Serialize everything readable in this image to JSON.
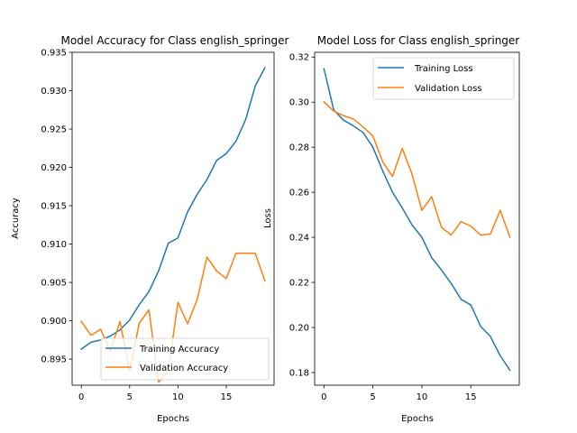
{
  "chart_data": [
    {
      "type": "line",
      "title": "Model Accuracy for Class english_springer",
      "xlabel": "Epochs",
      "ylabel": "Accuracy",
      "xlim": [
        -0.95,
        19.95
      ],
      "ylim": [
        0.8916,
        0.935
      ],
      "xticks": [
        0,
        5,
        10,
        15
      ],
      "yticks": [
        0.895,
        0.9,
        0.905,
        0.91,
        0.915,
        0.92,
        0.925,
        0.93,
        0.935
      ],
      "ytick_labels": [
        "0.895",
        "0.900",
        "0.905",
        "0.910",
        "0.915",
        "0.920",
        "0.925",
        "0.930",
        "0.935"
      ],
      "legend_position": "lower right",
      "x": [
        0,
        1,
        2,
        3,
        4,
        5,
        6,
        7,
        8,
        9,
        10,
        11,
        12,
        13,
        14,
        15,
        16,
        17,
        18,
        19
      ],
      "series": [
        {
          "name": "Training Accuracy",
          "color": "#1f77b4",
          "values": [
            0.8963,
            0.8972,
            0.8975,
            0.898,
            0.8988,
            0.9001,
            0.9021,
            0.9038,
            0.9065,
            0.9101,
            0.9108,
            0.9142,
            0.9165,
            0.9184,
            0.9209,
            0.9218,
            0.9234,
            0.9262,
            0.9306,
            0.933
          ]
        },
        {
          "name": "Validation Accuracy",
          "color": "#ff7f0e",
          "values": [
            0.8999,
            0.8981,
            0.8989,
            0.896,
            0.8999,
            0.8935,
            0.8997,
            0.9014,
            0.892,
            0.8935,
            0.9024,
            0.8996,
            0.9028,
            0.9083,
            0.9065,
            0.9055,
            0.9088,
            0.9088,
            0.9088,
            0.9052
          ]
        }
      ]
    },
    {
      "type": "line",
      "title": "Model Loss for Class english_springer",
      "xlabel": "Epochs",
      "ylabel": "Loss",
      "xlim": [
        -0.95,
        19.95
      ],
      "ylim": [
        0.1744,
        0.3221
      ],
      "xticks": [
        0,
        5,
        10,
        15
      ],
      "yticks": [
        0.18,
        0.2,
        0.22,
        0.24,
        0.26,
        0.28,
        0.3,
        0.32
      ],
      "ytick_labels": [
        "0.18",
        "0.20",
        "0.22",
        "0.24",
        "0.26",
        "0.28",
        "0.30",
        "0.32"
      ],
      "legend_position": "upper right",
      "x": [
        0,
        1,
        2,
        3,
        4,
        5,
        6,
        7,
        8,
        9,
        10,
        11,
        12,
        13,
        14,
        15,
        16,
        17,
        18,
        19
      ],
      "series": [
        {
          "name": "Training Loss",
          "color": "#1f77b4",
          "values": [
            0.3148,
            0.2965,
            0.292,
            0.2895,
            0.2865,
            0.28,
            0.2695,
            0.26,
            0.253,
            0.2455,
            0.24,
            0.231,
            0.2255,
            0.2195,
            0.2125,
            0.21,
            0.2005,
            0.196,
            0.1875,
            0.181
          ]
        },
        {
          "name": "Validation Loss",
          "color": "#ff7f0e",
          "values": [
            0.3001,
            0.296,
            0.294,
            0.2925,
            0.289,
            0.285,
            0.2735,
            0.267,
            0.2795,
            0.268,
            0.252,
            0.258,
            0.2445,
            0.241,
            0.247,
            0.245,
            0.241,
            0.2415,
            0.252,
            0.24
          ]
        }
      ]
    }
  ]
}
